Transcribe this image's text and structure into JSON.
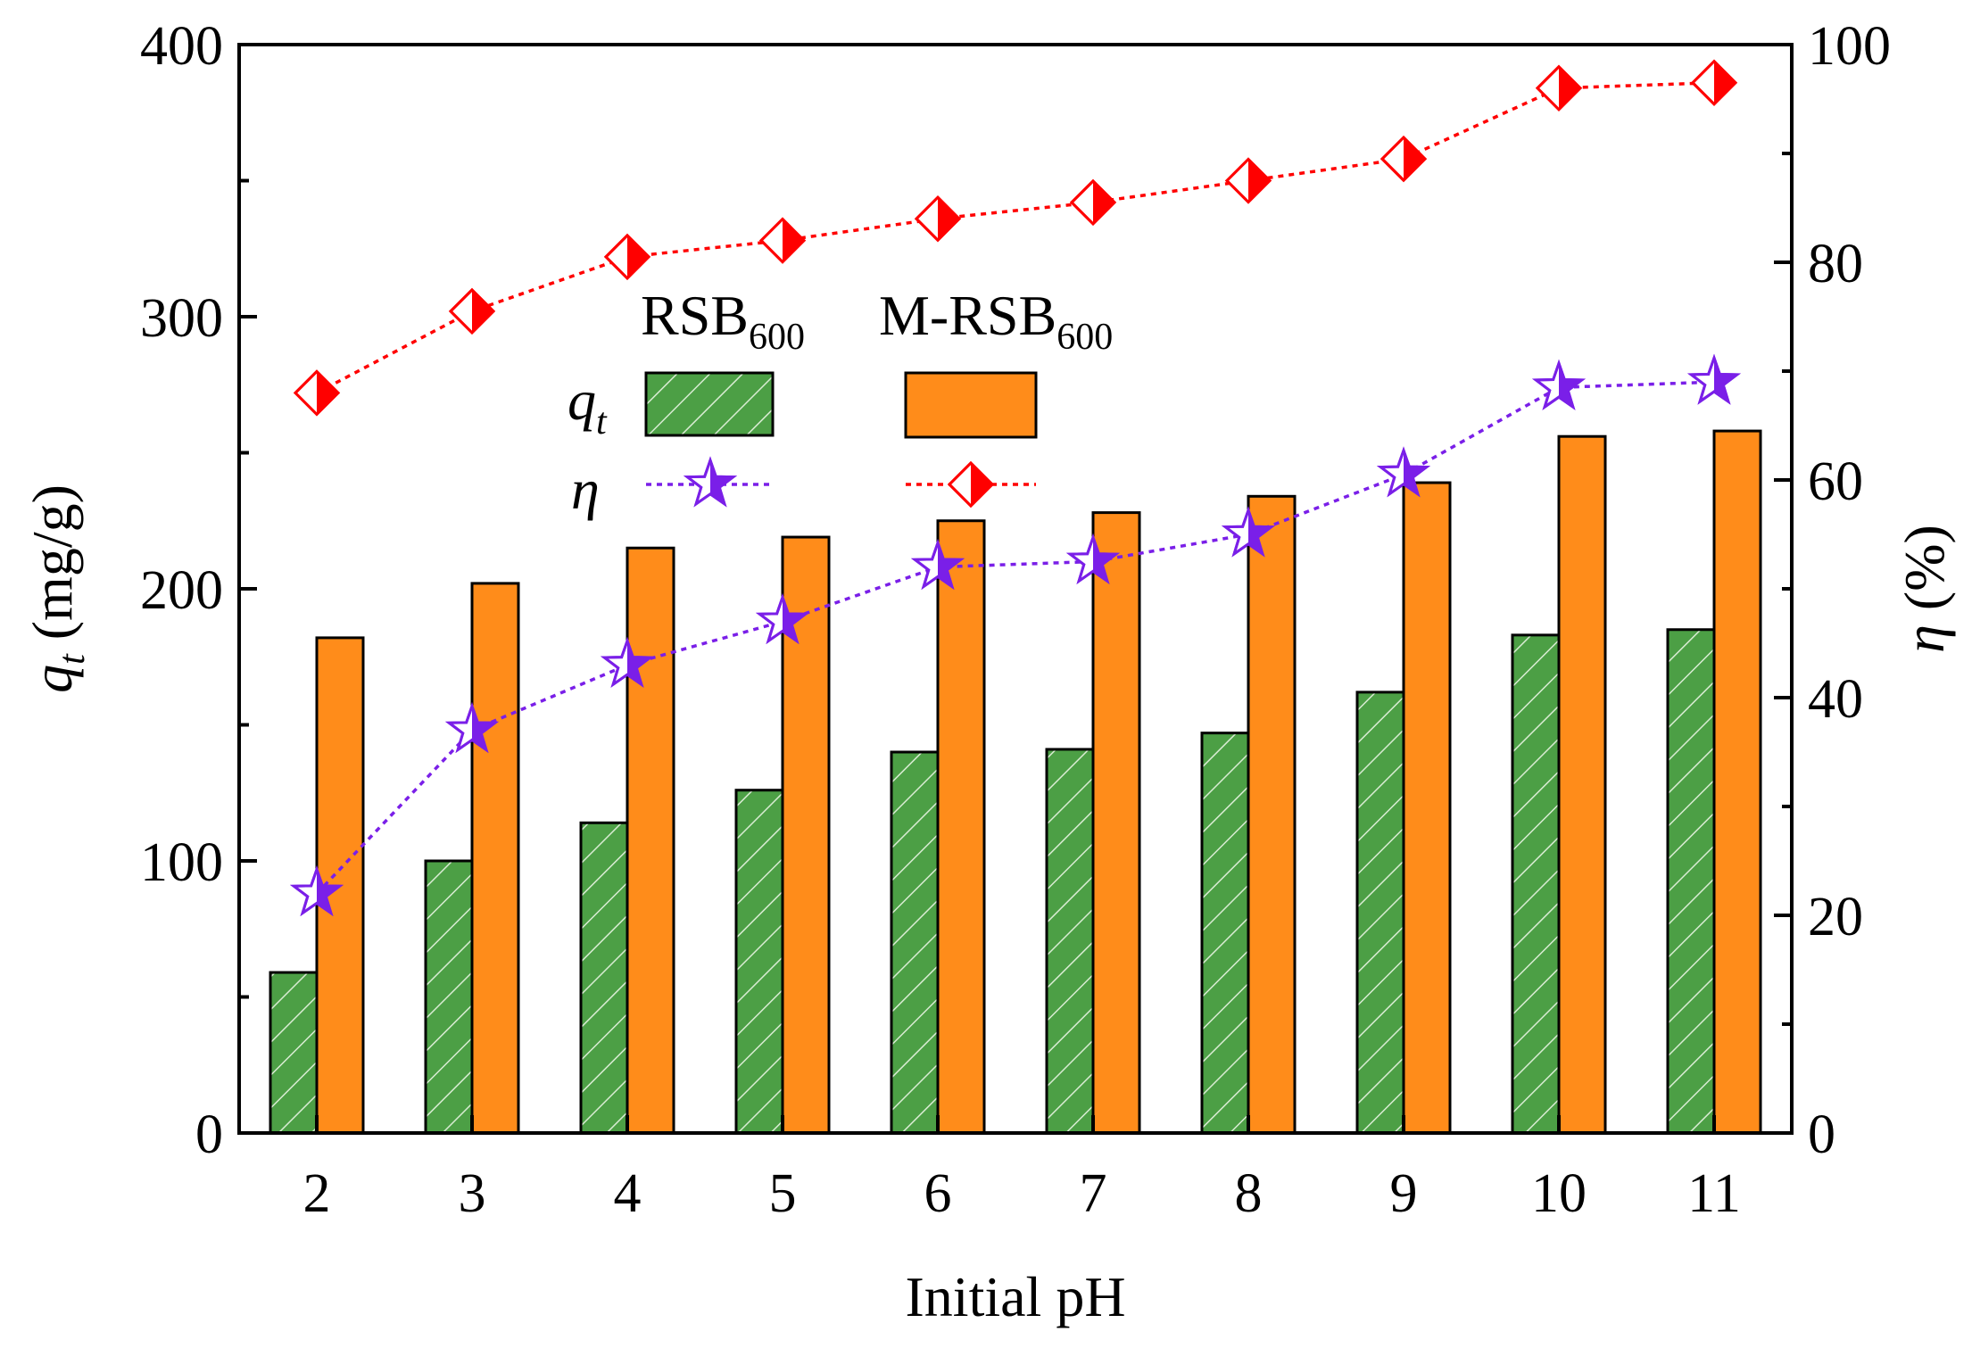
{
  "chart_data": {
    "type": "bar",
    "xlabel": "Initial pH",
    "ylabel_left": {
      "symbol": "q",
      "sub": "t",
      "unit": " (mg/g)"
    },
    "ylabel_right": {
      "symbol": "η",
      "unit": " (%)"
    },
    "categories": [
      "2",
      "3",
      "4",
      "5",
      "6",
      "7",
      "8",
      "9",
      "10",
      "11"
    ],
    "y_left_range": [
      0,
      400
    ],
    "y_left_ticks": [
      "0",
      "100",
      "200",
      "300",
      "400"
    ],
    "y_right_range": [
      0,
      100
    ],
    "y_right_ticks": [
      "0",
      "20",
      "40",
      "60",
      "80",
      "100"
    ],
    "series": [
      {
        "name": "RSB600 qt",
        "kind": "bar",
        "axis": "left",
        "color": "#4c9f45",
        "values": [
          59,
          100,
          114,
          126,
          140,
          141,
          147,
          162,
          183,
          185
        ]
      },
      {
        "name": "M-RSB600 qt",
        "kind": "bar",
        "axis": "left",
        "color": "#ff8c1a",
        "values": [
          182,
          202,
          215,
          219,
          225,
          228,
          234,
          239,
          256,
          258
        ]
      },
      {
        "name": "RSB600 η",
        "kind": "line",
        "marker": "star",
        "axis": "right",
        "color": "#7a1fe8",
        "values": [
          22,
          37,
          43,
          47,
          52,
          52.5,
          55,
          60.5,
          68.5,
          69
        ]
      },
      {
        "name": "M-RSB600 η",
        "kind": "line",
        "marker": "diamond",
        "axis": "right",
        "color": "#ff0000",
        "values": [
          68,
          75.5,
          80.5,
          82,
          84,
          85.5,
          87.5,
          89.5,
          96,
          96.5
        ]
      }
    ],
    "legend": {
      "position": "upper-left inside",
      "col1": {
        "base": "RSB",
        "sub": "600"
      },
      "col2": {
        "base": "M-RSB",
        "sub": "600"
      },
      "row1": {
        "symbol": "q",
        "sub": "t"
      },
      "row2": {
        "symbol": "η"
      }
    }
  }
}
